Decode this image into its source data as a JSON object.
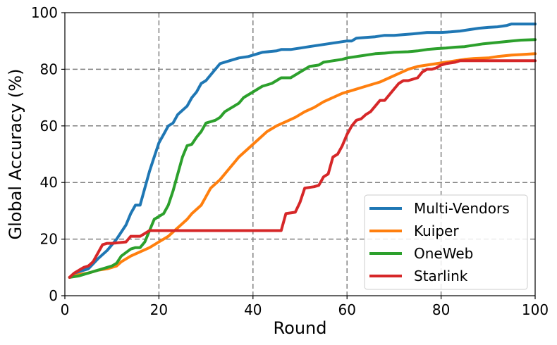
{
  "chart_data": {
    "type": "line",
    "title": "",
    "xlabel": "Round",
    "ylabel": "Global Accuracy (%)",
    "xlim": [
      0,
      100
    ],
    "ylim": [
      0,
      100
    ],
    "x_ticks": [
      0,
      20,
      40,
      60,
      80,
      100
    ],
    "y_ticks": [
      0,
      20,
      40,
      60,
      80,
      100
    ],
    "grid": true,
    "legend_position": "lower-right",
    "series": [
      {
        "name": "Multi-Vendors",
        "color": "#1f77b4",
        "points": [
          [
            1,
            6.5
          ],
          [
            3,
            8.5
          ],
          [
            5,
            9.5
          ],
          [
            7,
            13
          ],
          [
            9,
            16
          ],
          [
            11,
            20
          ],
          [
            13,
            25
          ],
          [
            14,
            29
          ],
          [
            15,
            32
          ],
          [
            16,
            32
          ],
          [
            17,
            38
          ],
          [
            18,
            44
          ],
          [
            19,
            49
          ],
          [
            20,
            54
          ],
          [
            21,
            57
          ],
          [
            22,
            60
          ],
          [
            23,
            61
          ],
          [
            24,
            64
          ],
          [
            26,
            67
          ],
          [
            27,
            70
          ],
          [
            28,
            72
          ],
          [
            29,
            75
          ],
          [
            30,
            76
          ],
          [
            31,
            78
          ],
          [
            32,
            80
          ],
          [
            33,
            82
          ],
          [
            35,
            83
          ],
          [
            37,
            84
          ],
          [
            39,
            84.5
          ],
          [
            40,
            85
          ],
          [
            42,
            86
          ],
          [
            45,
            86.5
          ],
          [
            46,
            87
          ],
          [
            48,
            87
          ],
          [
            50,
            87.5
          ],
          [
            52,
            88
          ],
          [
            54,
            88.5
          ],
          [
            56,
            89
          ],
          [
            58,
            89.5
          ],
          [
            60,
            90
          ],
          [
            61,
            90
          ],
          [
            62,
            91
          ],
          [
            66,
            91.5
          ],
          [
            68,
            92
          ],
          [
            70,
            92
          ],
          [
            74,
            92.5
          ],
          [
            77,
            93
          ],
          [
            80,
            93
          ],
          [
            82,
            93.2
          ],
          [
            84,
            93.5
          ],
          [
            86,
            94
          ],
          [
            88,
            94.5
          ],
          [
            90,
            94.8
          ],
          [
            92,
            95
          ],
          [
            94,
            95.5
          ],
          [
            95,
            96
          ],
          [
            97,
            96
          ],
          [
            100,
            96
          ]
        ]
      },
      {
        "name": "Kuiper",
        "color": "#ff7f0e",
        "points": [
          [
            1,
            6.5
          ],
          [
            3,
            7.5
          ],
          [
            5,
            8
          ],
          [
            7,
            9
          ],
          [
            9,
            9.5
          ],
          [
            11,
            10.5
          ],
          [
            12,
            12
          ],
          [
            14,
            14
          ],
          [
            16,
            15.5
          ],
          [
            18,
            17
          ],
          [
            20,
            19
          ],
          [
            22,
            21
          ],
          [
            24,
            24
          ],
          [
            26,
            27
          ],
          [
            27,
            29
          ],
          [
            29,
            32
          ],
          [
            30,
            35
          ],
          [
            31,
            38
          ],
          [
            33,
            41
          ],
          [
            35,
            45
          ],
          [
            36,
            47
          ],
          [
            37,
            49
          ],
          [
            39,
            52
          ],
          [
            41,
            55
          ],
          [
            43,
            58
          ],
          [
            45,
            60
          ],
          [
            47,
            61.5
          ],
          [
            49,
            63
          ],
          [
            51,
            65
          ],
          [
            53,
            66.5
          ],
          [
            55,
            68.5
          ],
          [
            57,
            70
          ],
          [
            59,
            71.5
          ],
          [
            61,
            72.5
          ],
          [
            63,
            73.5
          ],
          [
            65,
            74.5
          ],
          [
            67,
            75.5
          ],
          [
            69,
            77
          ],
          [
            71,
            78.5
          ],
          [
            73,
            80
          ],
          [
            75,
            81
          ],
          [
            77,
            81.5
          ],
          [
            79,
            82
          ],
          [
            81,
            82.5
          ],
          [
            83,
            83
          ],
          [
            85,
            83.5
          ],
          [
            87,
            83.8
          ],
          [
            90,
            84
          ],
          [
            92,
            84.5
          ],
          [
            95,
            85
          ],
          [
            97,
            85.2
          ],
          [
            100,
            85.5
          ]
        ]
      },
      {
        "name": "OneWeb",
        "color": "#2ca02c",
        "points": [
          [
            1,
            6.5
          ],
          [
            3,
            7
          ],
          [
            5,
            8
          ],
          [
            7,
            9
          ],
          [
            9,
            10
          ],
          [
            10,
            10.5
          ],
          [
            11,
            11.5
          ],
          [
            12,
            14
          ],
          [
            14,
            16.5
          ],
          [
            15,
            17
          ],
          [
            16,
            17
          ],
          [
            17,
            19
          ],
          [
            18,
            23
          ],
          [
            19,
            27
          ],
          [
            20,
            28
          ],
          [
            21,
            29
          ],
          [
            22,
            32
          ],
          [
            23,
            37
          ],
          [
            24,
            43
          ],
          [
            25,
            49
          ],
          [
            26,
            53
          ],
          [
            27,
            53.5
          ],
          [
            28,
            56
          ],
          [
            29,
            58
          ],
          [
            30,
            61
          ],
          [
            31,
            61.5
          ],
          [
            32,
            62
          ],
          [
            33,
            63
          ],
          [
            34,
            65
          ],
          [
            35,
            66
          ],
          [
            36,
            67
          ],
          [
            37,
            68
          ],
          [
            38,
            70
          ],
          [
            40,
            72
          ],
          [
            41,
            73
          ],
          [
            42,
            74
          ],
          [
            43,
            74.5
          ],
          [
            44,
            75
          ],
          [
            45,
            76
          ],
          [
            46,
            77
          ],
          [
            48,
            77
          ],
          [
            50,
            79
          ],
          [
            51,
            80
          ],
          [
            52,
            81
          ],
          [
            54,
            81.5
          ],
          [
            55,
            82.5
          ],
          [
            57,
            83
          ],
          [
            59,
            83.5
          ],
          [
            60,
            84
          ],
          [
            62,
            84.5
          ],
          [
            64,
            85
          ],
          [
            66,
            85.5
          ],
          [
            68,
            85.7
          ],
          [
            70,
            86
          ],
          [
            73,
            86.2
          ],
          [
            75,
            86.5
          ],
          [
            77,
            87
          ],
          [
            79,
            87.3
          ],
          [
            81,
            87.5
          ],
          [
            83,
            87.8
          ],
          [
            85,
            88
          ],
          [
            87,
            88.5
          ],
          [
            89,
            89
          ],
          [
            92,
            89.5
          ],
          [
            95,
            90
          ],
          [
            97,
            90.3
          ],
          [
            100,
            90.5
          ]
        ]
      },
      {
        "name": "Starlink",
        "color": "#d62728",
        "points": [
          [
            1,
            6.5
          ],
          [
            2,
            8
          ],
          [
            3,
            9
          ],
          [
            4,
            10
          ],
          [
            5,
            10.5
          ],
          [
            6,
            12
          ],
          [
            7,
            15
          ],
          [
            8,
            18
          ],
          [
            9,
            18.5
          ],
          [
            10,
            18.5
          ],
          [
            13,
            19
          ],
          [
            14,
            21
          ],
          [
            16,
            21
          ],
          [
            17,
            22
          ],
          [
            18,
            23
          ],
          [
            21,
            23
          ],
          [
            24,
            23
          ],
          [
            46,
            23
          ],
          [
            47,
            29
          ],
          [
            49,
            29.5
          ],
          [
            50,
            33
          ],
          [
            51,
            38
          ],
          [
            53,
            38.5
          ],
          [
            54,
            39
          ],
          [
            55,
            42
          ],
          [
            56,
            43
          ],
          [
            57,
            49
          ],
          [
            58,
            50
          ],
          [
            59,
            53
          ],
          [
            60,
            57
          ],
          [
            61,
            60
          ],
          [
            62,
            62
          ],
          [
            63,
            62.5
          ],
          [
            64,
            64
          ],
          [
            65,
            65
          ],
          [
            66,
            67
          ],
          [
            67,
            69
          ],
          [
            68,
            69
          ],
          [
            69,
            71
          ],
          [
            70,
            73
          ],
          [
            71,
            75
          ],
          [
            72,
            76
          ],
          [
            73,
            76
          ],
          [
            74,
            76.5
          ],
          [
            75,
            77
          ],
          [
            76,
            79
          ],
          [
            77,
            80
          ],
          [
            78,
            80
          ],
          [
            79,
            80.5
          ],
          [
            80,
            81.5
          ],
          [
            81,
            82
          ],
          [
            83,
            82.5
          ],
          [
            84,
            83
          ],
          [
            85,
            83
          ],
          [
            100,
            83
          ]
        ]
      }
    ]
  }
}
